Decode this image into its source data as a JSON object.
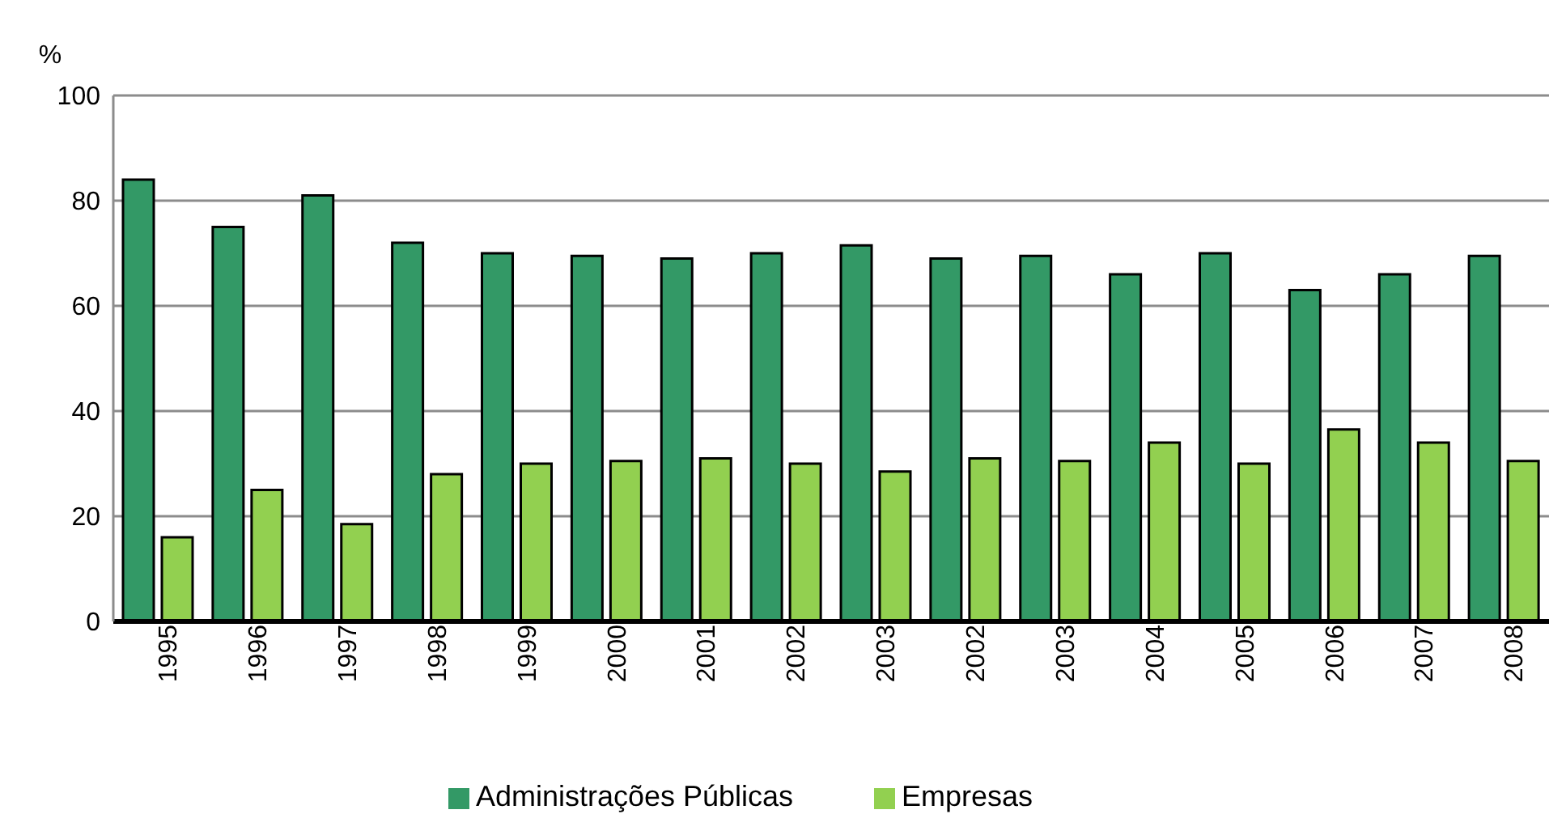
{
  "chart_data": {
    "type": "bar",
    "ylabel": "%",
    "categories": [
      "1995",
      "1996",
      "1997",
      "1998",
      "1999",
      "2000",
      "2001",
      "2002",
      "2003",
      "2002",
      "2003",
      "2004",
      "2005",
      "2006",
      "2007",
      "2008"
    ],
    "series": [
      {
        "name": "Administrações Públicas",
        "color": "#339966",
        "values": [
          84,
          75,
          81,
          72,
          70,
          69.5,
          69,
          70,
          71.5,
          69,
          69.5,
          66,
          70,
          63,
          66,
          69.5
        ]
      },
      {
        "name": "Empresas",
        "color": "#92d050",
        "values": [
          16,
          25,
          18.5,
          28,
          30,
          30.5,
          31,
          30,
          28.5,
          31,
          30.5,
          34,
          30,
          36.5,
          34,
          30.5
        ]
      }
    ],
    "ylim": [
      0,
      100
    ],
    "yticks": [
      0,
      20,
      40,
      60,
      80,
      100
    ],
    "grid": "y",
    "legend": "bottom"
  }
}
